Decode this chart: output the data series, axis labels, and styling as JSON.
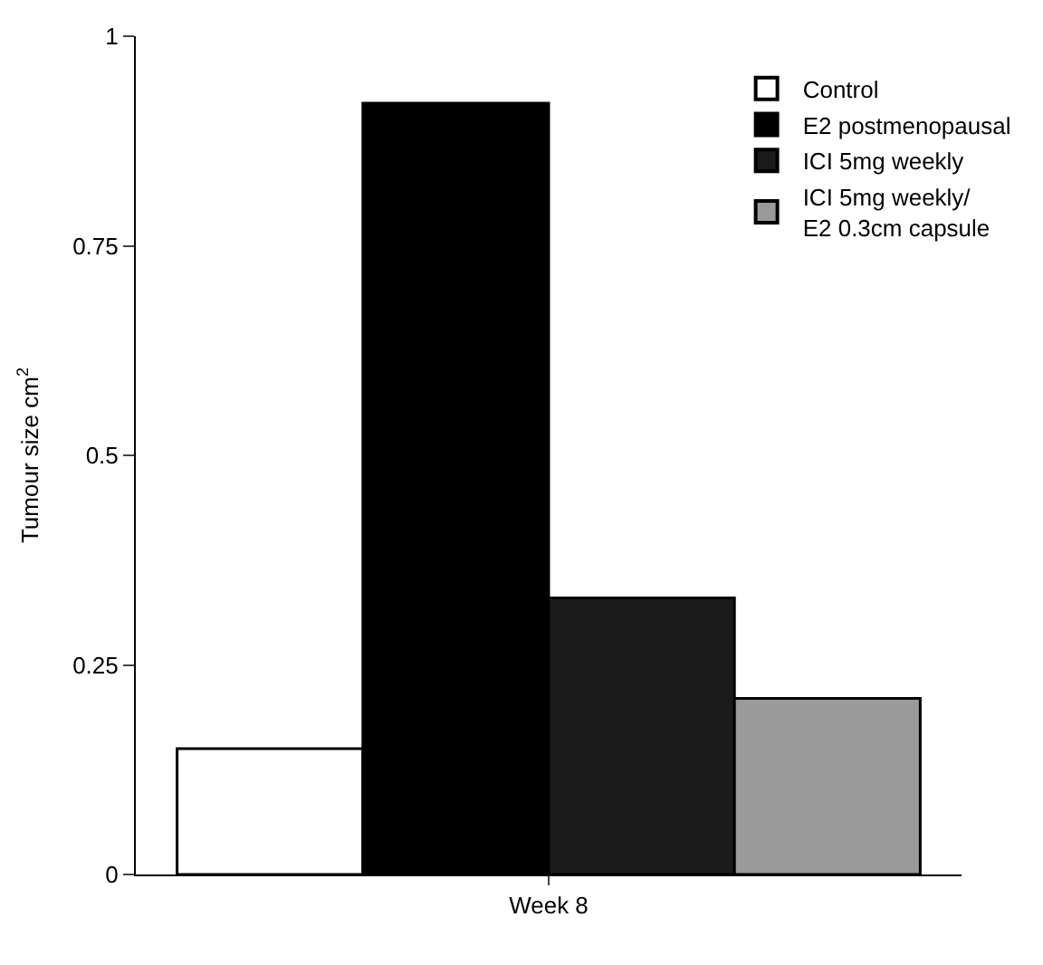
{
  "chart_data": {
    "type": "bar",
    "ylabel": "Tumour size cm$^{2}$",
    "categories": [
      "Week 8"
    ],
    "series": [
      {
        "name": "Control",
        "color": "#ffffff",
        "values": [
          0.15
        ]
      },
      {
        "name": "E2 postmenopausal",
        "color": "#000000",
        "values": [
          0.92
        ]
      },
      {
        "name": "ICI 5mg weekly",
        "color": "#1a1a1a",
        "values": [
          0.33
        ]
      },
      {
        "name": "ICI 5mg weekly/\nE2 0.3cm capsule",
        "color": "#9a9a9a",
        "values": [
          0.21
        ]
      }
    ],
    "ylim": [
      0,
      1
    ],
    "yticks": [
      0,
      0.25,
      0.5,
      0.75,
      1
    ],
    "legend": "top right"
  }
}
